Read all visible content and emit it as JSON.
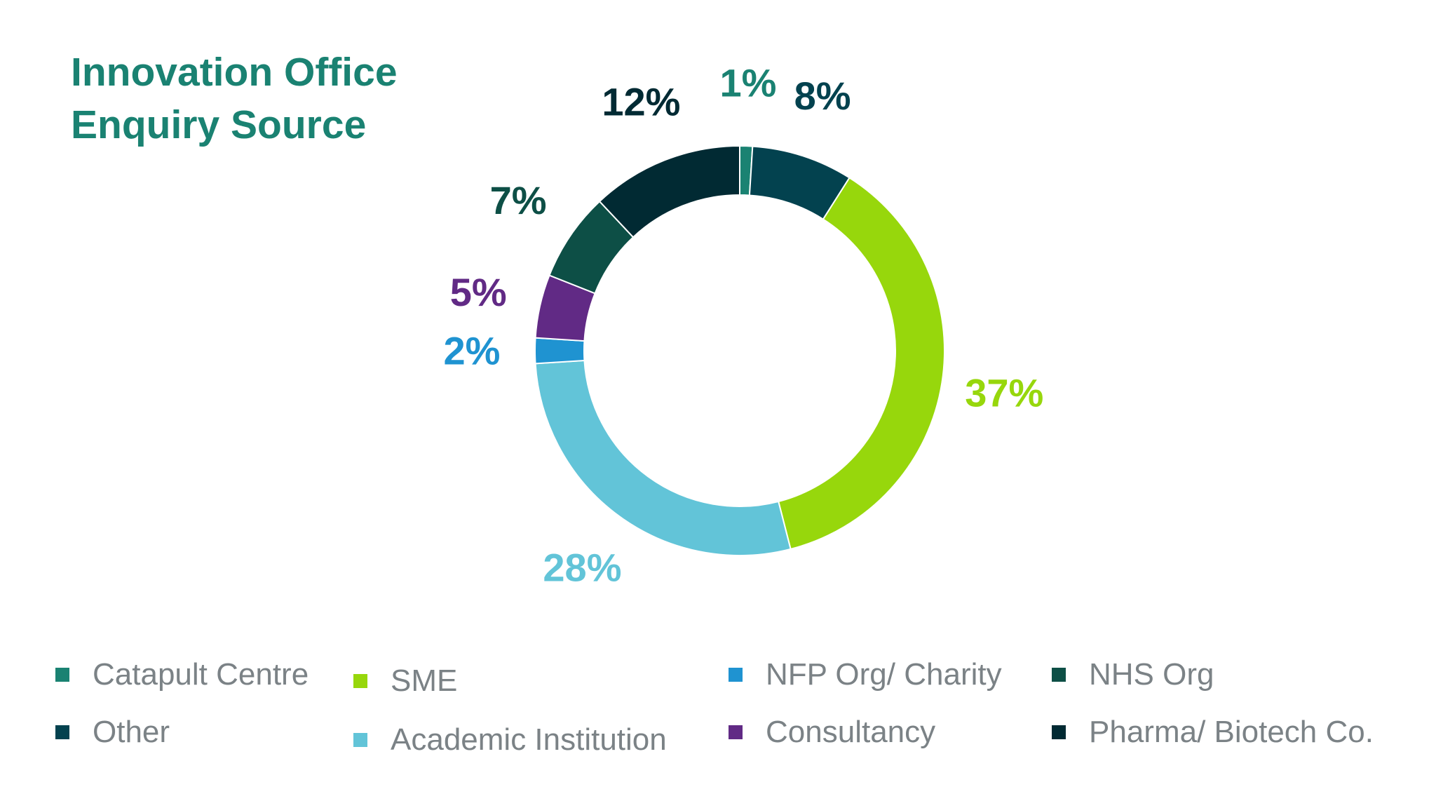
{
  "chart_data": {
    "type": "donut",
    "title": [
      "Innovation Office",
      "Enquiry Source"
    ],
    "slices": [
      {
        "name": "Catapult Centre",
        "value": 1,
        "label": "1%",
        "color": "#1a8272"
      },
      {
        "name": "Other",
        "value": 8,
        "label": "8%",
        "color": "#03424f"
      },
      {
        "name": "SME",
        "value": 37,
        "label": "37%",
        "color": "#97d70c"
      },
      {
        "name": "Academic Institution",
        "value": 28,
        "label": "28%",
        "color": "#62c4d8"
      },
      {
        "name": "NFP Org/ Charity",
        "value": 2,
        "label": "2%",
        "color": "#1f93d1"
      },
      {
        "name": "Consultancy",
        "value": 5,
        "label": "5%",
        "color": "#612a85"
      },
      {
        "name": "NHS Org",
        "value": 7,
        "label": "7%",
        "color": "#0d4f46"
      },
      {
        "name": "Pharma/ Biotech Co.",
        "value": 12,
        "label": "12%",
        "color": "#012a33"
      }
    ],
    "legend": {
      "rows": [
        [
          "Catapult Centre",
          "SME",
          "NFP Org/ Charity",
          "NHS Org"
        ],
        [
          "Other",
          "Academic Institution",
          "Consultancy",
          "Pharma/ Biotech Co."
        ]
      ],
      "placement": "bottom"
    }
  }
}
